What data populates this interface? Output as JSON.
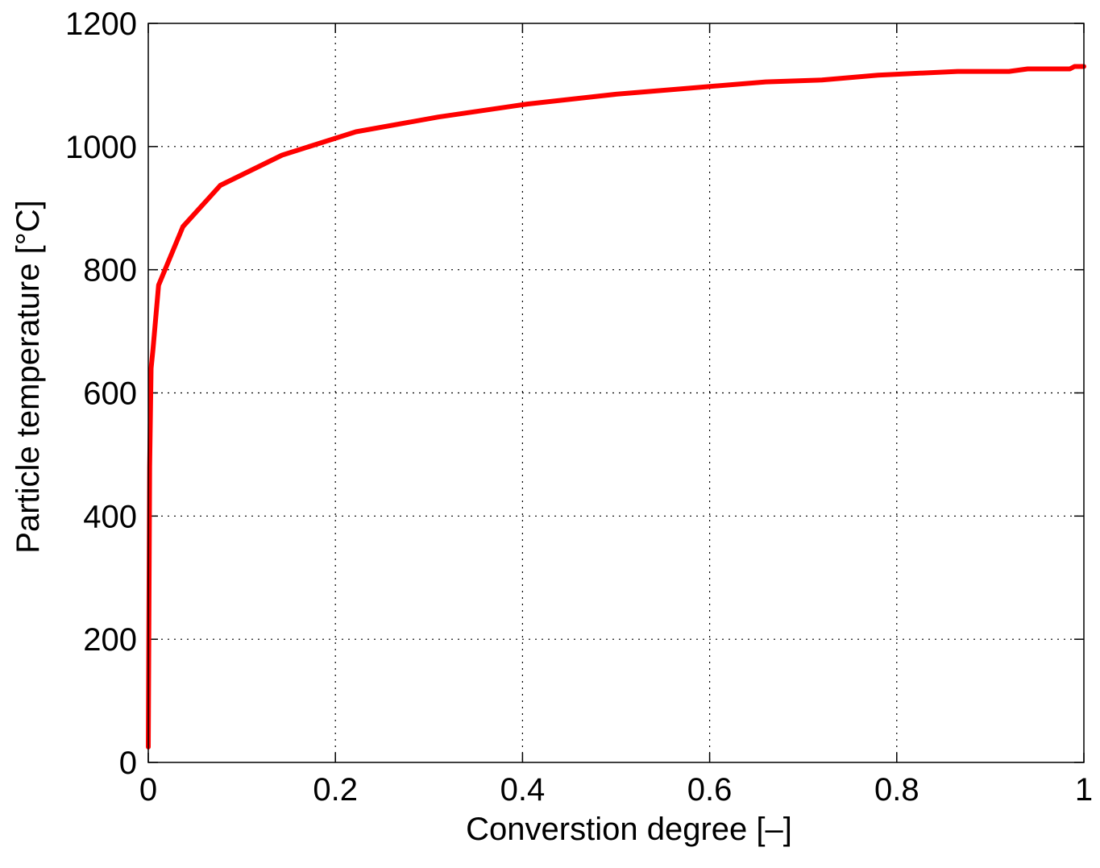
{
  "chart_data": {
    "type": "line",
    "title": "",
    "xlabel": "Converstion degree   [–]",
    "ylabel": "Particle temperature   [°C]",
    "xlim": [
      0,
      1
    ],
    "ylim": [
      0,
      1200
    ],
    "xticks": [
      0,
      0.2,
      0.4,
      0.6,
      0.8,
      1
    ],
    "xtick_labels": [
      "0",
      "0.2",
      "0.4",
      "0.6",
      "0.8",
      "1"
    ],
    "yticks": [
      0,
      200,
      400,
      600,
      800,
      1000,
      1200
    ],
    "ytick_labels": [
      "0",
      "200",
      "400",
      "600",
      "800",
      "1000",
      "1200"
    ],
    "grid": true,
    "series": [
      {
        "color": "#ff0000",
        "x": [
          0.0,
          0.0015,
          0.003,
          0.005,
          0.011,
          0.037,
          0.077,
          0.143,
          0.222,
          0.31,
          0.405,
          0.5,
          0.58,
          0.66,
          0.72,
          0.78,
          0.865,
          0.92,
          0.94,
          0.985,
          0.99,
          1.0
        ],
        "y": [
          25,
          480,
          640,
          670,
          775,
          870,
          937,
          986,
          1024,
          1048,
          1069,
          1085,
          1095,
          1105,
          1108,
          1116,
          1122,
          1122,
          1126,
          1126,
          1130,
          1130
        ]
      }
    ]
  }
}
